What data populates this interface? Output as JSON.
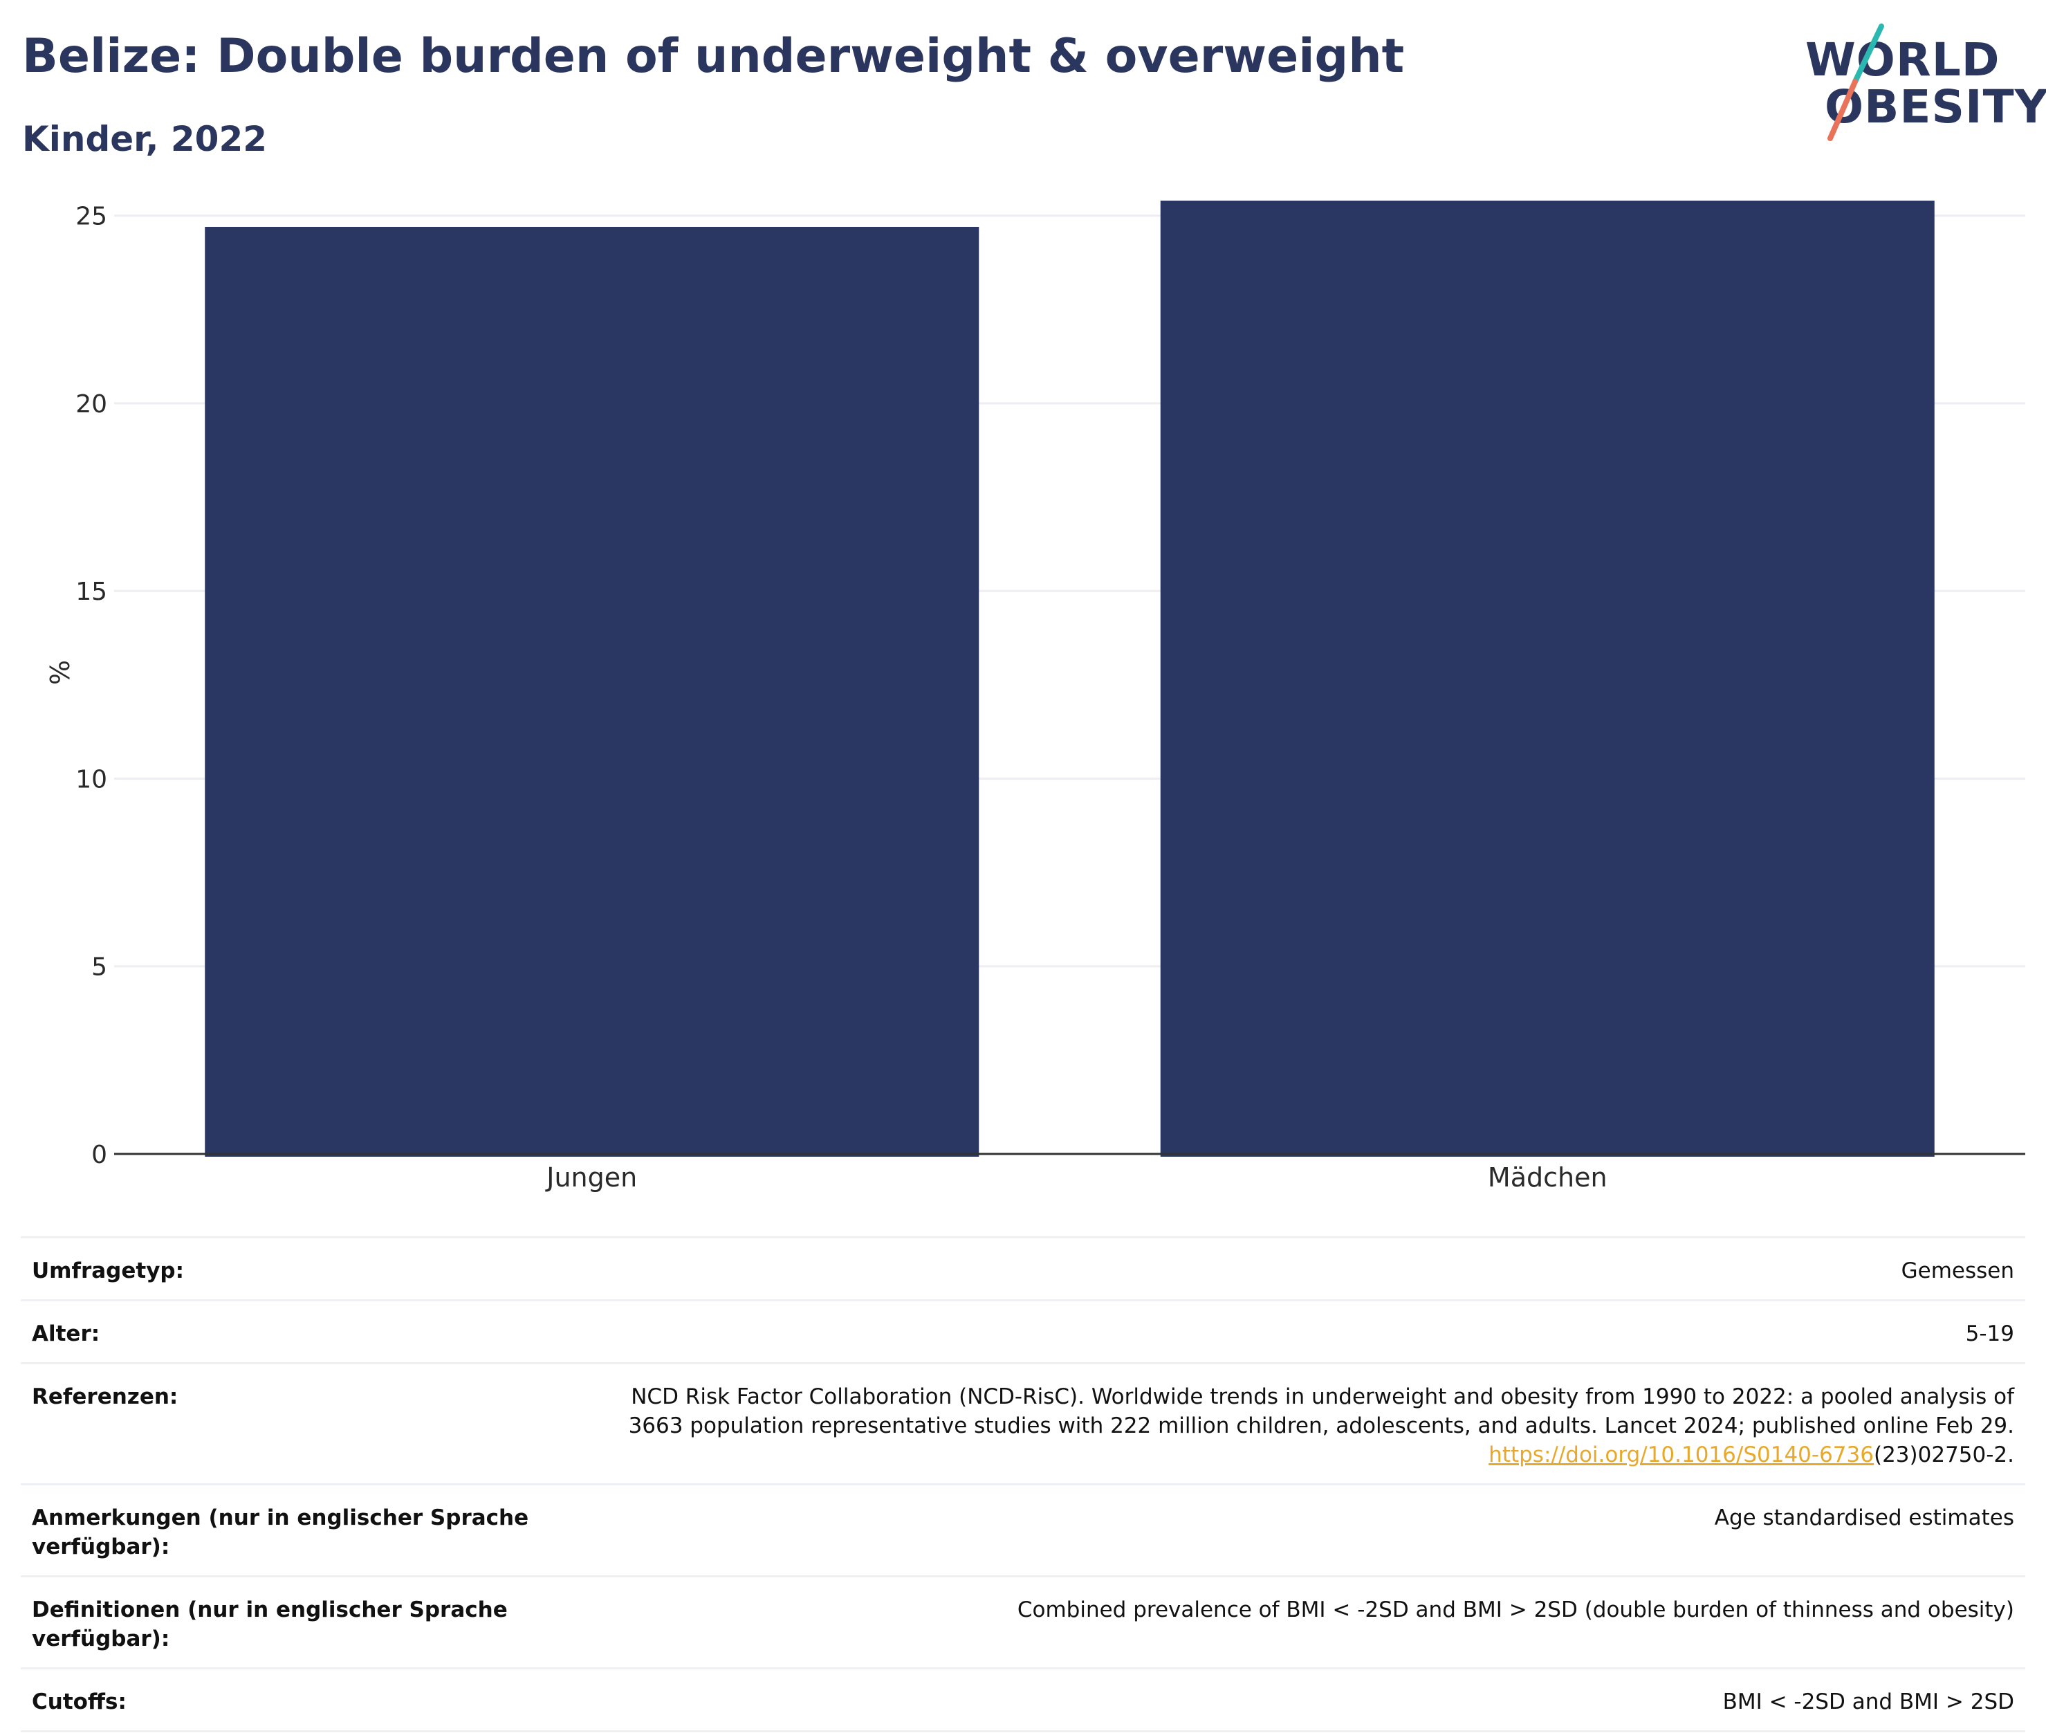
{
  "header": {
    "title": "Belize: Double burden of underweight & overweight",
    "subtitle": "Kinder, 2022"
  },
  "logo": {
    "line1": "WORLD",
    "line2": "OBESITY"
  },
  "colors": {
    "bar": "#2b3763",
    "text_dark": "#2b365f",
    "grid": "#eceef2",
    "axis": "#333333",
    "logo_slash_top": "#2bb8b0",
    "logo_slash_bottom": "#e8735a",
    "link": "#e8a92a"
  },
  "chart_data": {
    "type": "bar",
    "categories": [
      "Jungen",
      "Mädchen"
    ],
    "values": [
      24.7,
      25.4
    ],
    "ylabel": "%",
    "ylim": [
      0,
      25.4
    ],
    "yticks": [
      0,
      5,
      10,
      15,
      20,
      25
    ],
    "grid": true,
    "legend": "none"
  },
  "info": {
    "rows": [
      {
        "label": "Umfragetyp:",
        "value": "Gemessen"
      },
      {
        "label": "Alter:",
        "value": "5-19"
      },
      {
        "label": "Referenzen:",
        "value_line1": "NCD Risk Factor Collaboration (NCD-RisC). Worldwide trends in underweight and obesity from 1990 to 2022: a pooled analysis of",
        "value_line2": "3663 population representative studies with 222 million children, adolescents, and adults. Lancet 2024; published online Feb 29.",
        "link_text": "https://doi.org/10.1016/S0140-6736",
        "link_suffix": "(23)02750-2."
      },
      {
        "label": "Anmerkungen (nur in englischer Sprache verfügbar):",
        "value": "Age standardised estimates"
      },
      {
        "label": "Definitionen (nur in englischer Sprache verfügbar):",
        "value": "Combined prevalence of BMI < -2SD and BMI > 2SD (double burden of thinness and obesity)"
      },
      {
        "label": "Cutoffs:",
        "value": "BMI < -2SD and BMI > 2SD"
      }
    ]
  }
}
